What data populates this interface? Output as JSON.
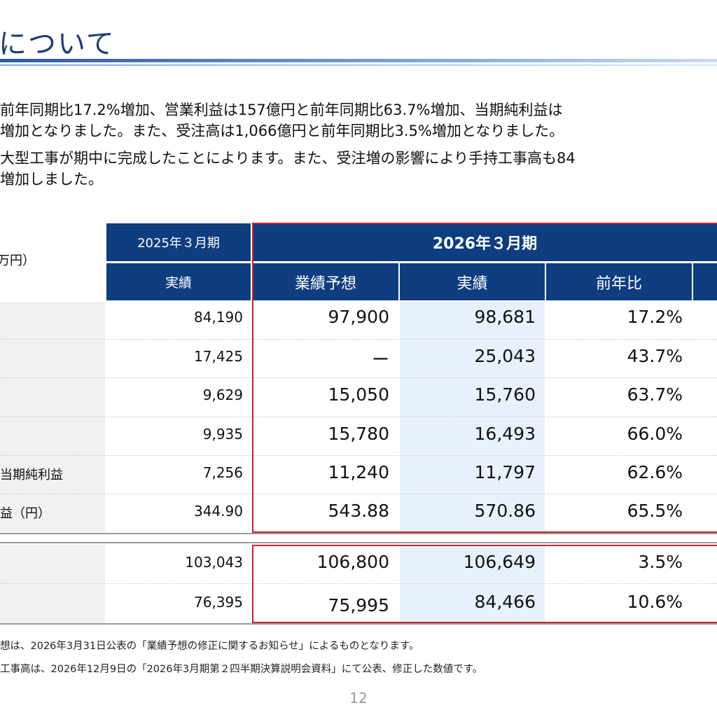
{
  "title": "について",
  "paragraphs": [
    "前年同期比17.2%増加、営業利益は157億円と前年同期比63.7%増加、当期純利益は",
    "増加となりました。また、受注高は1,066億円と前年同期比3.5%増加となりました。",
    "大型工事が期中に完成したことによります。また、受注増の影響により手持工事高も84",
    "増加しました。"
  ],
  "table": {
    "unit_label": "万円）",
    "header_2025": "2025年３月期",
    "header_2026": "2026年３月期",
    "sub_headers": [
      "実績",
      "業績予想",
      "実績",
      "前年比"
    ],
    "rows": [
      {
        "label": "",
        "prev": "84,190",
        "forecast": "97,900",
        "actual": "98,681",
        "yoy": "17.2%"
      },
      {
        "label": "",
        "prev": "17,425",
        "forecast": "ー",
        "actual": "25,043",
        "yoy": "43.7%"
      },
      {
        "label": "",
        "prev": "9,629",
        "forecast": "15,050",
        "actual": "15,760",
        "yoy": "63.7%"
      },
      {
        "label": "",
        "prev": "9,935",
        "forecast": "15,780",
        "actual": "16,493",
        "yoy": "66.0%"
      },
      {
        "label": "当期純利益",
        "prev": "7,256",
        "forecast": "11,240",
        "actual": "11,797",
        "yoy": "62.6%"
      },
      {
        "label": "益（円）",
        "prev": "344.90",
        "forecast": "543.88",
        "actual": "570.86",
        "yoy": "65.5%"
      }
    ],
    "rows2": [
      {
        "label": "",
        "prev": "103,043",
        "forecast": "106,800",
        "actual": "106,649",
        "yoy": "3.5%"
      },
      {
        "label": "",
        "prev": "76,395",
        "forecast": "75,995",
        "actual": "84,466",
        "yoy": "10.6%"
      }
    ]
  },
  "notes": [
    "想は、2026年3月31日公表の「業績予想の修正に関するお知らせ」によるものとなります。",
    "工事高は、2026年12月9日の「2026年3月期第２四半期決算説明会資料」にて公表、修正した数値です。"
  ],
  "page_number": "12",
  "colors": {
    "header_bg": "#0e3d80",
    "highlight": "#e6f1fc",
    "red_box": "#d0202a",
    "title": "#1a3f7a"
  }
}
